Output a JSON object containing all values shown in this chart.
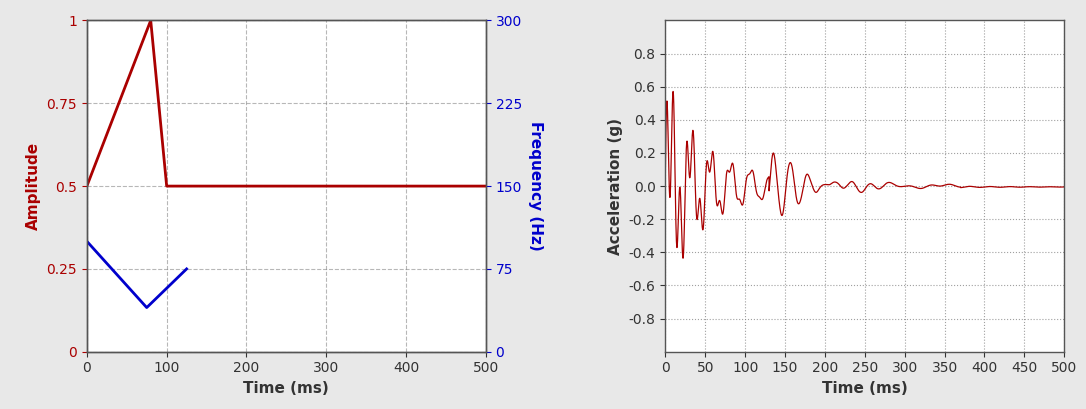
{
  "left": {
    "red_x": [
      0,
      80,
      100,
      500
    ],
    "red_y": [
      0.5,
      1.0,
      0.5,
      0.5
    ],
    "blue_x": [
      0,
      75,
      125
    ],
    "blue_y": [
      100,
      40,
      75
    ],
    "xlim": [
      0,
      500
    ],
    "ylim_left": [
      0,
      1.0
    ],
    "ylim_right": [
      0,
      300
    ],
    "yticks_left": [
      0,
      0.25,
      0.5,
      0.75,
      1.0
    ],
    "yticks_right": [
      0,
      75,
      150,
      225,
      300
    ],
    "xticks": [
      0,
      100,
      200,
      300,
      400,
      500
    ],
    "xlabel": "Time (ms)",
    "ylabel_left": "Amplitude",
    "ylabel_right": "Frequency (Hz)",
    "red_color": "#aa0000",
    "blue_color": "#0000cc",
    "grid_color": "#888888",
    "bg_color": "#ffffff"
  },
  "right": {
    "xlim": [
      0,
      500
    ],
    "ylim": [
      -1.0,
      1.0
    ],
    "yticks": [
      -0.8,
      -0.6,
      -0.4,
      -0.2,
      0.0,
      0.2,
      0.4,
      0.6,
      0.8
    ],
    "xticks": [
      0,
      50,
      100,
      150,
      200,
      250,
      300,
      350,
      400,
      450,
      500
    ],
    "xlabel": "Time (ms)",
    "ylabel": "Acceleration (g)",
    "line_color": "#aa0000",
    "grid_color": "#888888",
    "bg_color": "#ffffff"
  },
  "fig_bg": "#e8e8e8"
}
